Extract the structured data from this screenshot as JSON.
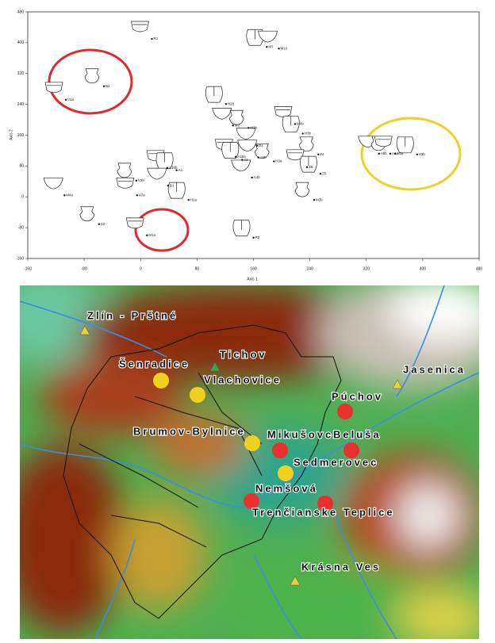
{
  "chart_data": {
    "type": "scatter",
    "x_label": "Axis 1",
    "y_label": "Axis 2",
    "xlim": [
      -160,
      480
    ],
    "ylim": [
      -160,
      480
    ],
    "xticks": [
      -160,
      -80,
      0,
      80,
      160,
      240,
      320,
      400,
      480
    ],
    "yticks": [
      -160,
      -80,
      0,
      80,
      160,
      240,
      320,
      400,
      480
    ],
    "labels": [
      "R1",
      "M7",
      "M10",
      "B2",
      "V2a",
      "H2b",
      "M2",
      "M2b",
      "M4b",
      "H3b",
      "D1",
      "Z4",
      "A10a",
      "A2",
      "A6b",
      "H3a",
      "Z8",
      "Z5",
      "A4b",
      "M3b",
      "A10b",
      "A1",
      "B1",
      "V2b",
      "A7a",
      "H2a",
      "M4a",
      "S2",
      "M1a",
      "R2",
      "A8b",
      "A4a",
      "A5a",
      "V3b"
    ],
    "x": [
      16,
      179,
      196,
      -52,
      -106,
      121,
      131,
      153,
      219,
      230,
      165,
      252,
      135,
      144,
      167,
      189,
      236,
      255,
      158,
      246,
      38,
      51,
      39,
      -6,
      -5,
      68,
      -108,
      -59,
      9,
      160,
      338,
      354,
      361,
      392
    ],
    "values": [
      410,
      389,
      385,
      287,
      252,
      241,
      185,
      179,
      189,
      164,
      133,
      110,
      104,
      96,
      102,
      92,
      77,
      60,
      50,
      -8,
      75,
      69,
      29,
      42,
      4,
      -8,
      4,
      -71,
      -100,
      -106,
      112,
      112,
      112,
      110
    ],
    "color": "#111"
  },
  "map": {
    "places": [
      {
        "name": "Zlín - Prštné",
        "marker": "triangle",
        "color": "#e8d23a"
      },
      {
        "name": "Tichov",
        "marker": "triangle",
        "color": "#3aa64a"
      },
      {
        "name": "Jasenica",
        "marker": "triangle",
        "color": "#e8d23a"
      },
      {
        "name": "Šenradice",
        "marker": "circle",
        "color": "#f2d020"
      },
      {
        "name": "Vlachovice",
        "marker": "circle",
        "color": "#f2d020"
      },
      {
        "name": "Púchov",
        "marker": "circle",
        "color": "#e8302f"
      },
      {
        "name": "Brumov-Bylnice",
        "marker": "circle",
        "color": "#f2d020"
      },
      {
        "name": "Mikušovce",
        "marker": "circle",
        "color": "#e8302f"
      },
      {
        "name": "Beluša",
        "marker": "circle",
        "color": "#e8302f"
      },
      {
        "name": "Sedmerovec",
        "marker": "circle",
        "color": "#f2d020"
      },
      {
        "name": "Nemšová",
        "marker": "circle",
        "color": "#e8302f"
      },
      {
        "name": "Trenčianske Teplice",
        "marker": "circle",
        "color": "#e8302f"
      },
      {
        "name": "Krásna Ves",
        "marker": "triangle",
        "color": "#e8d23a"
      }
    ]
  }
}
